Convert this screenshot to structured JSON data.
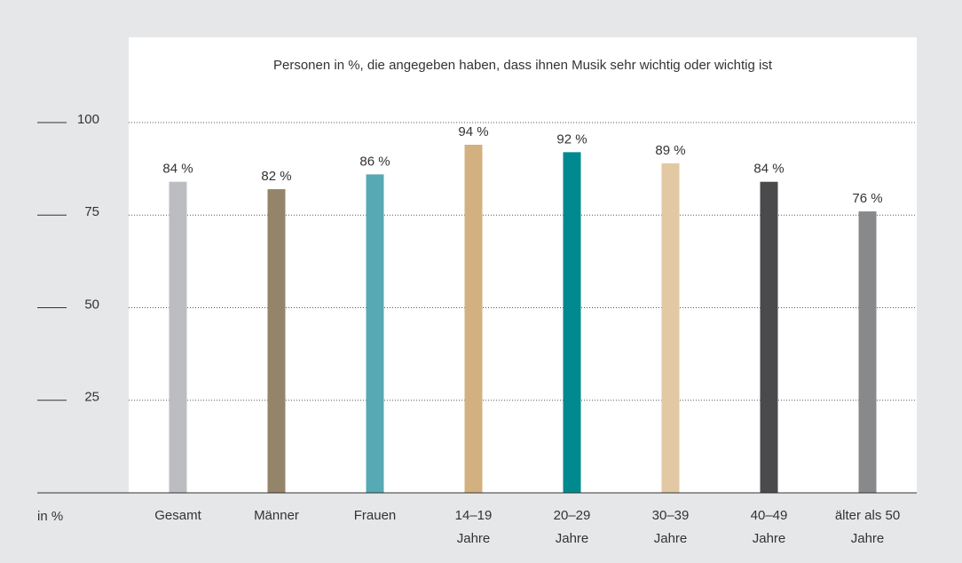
{
  "chart_data": {
    "type": "bar",
    "title": "Personen in %, die angegeben haben, dass ihnen Musik sehr wichtig oder wichtig ist",
    "y_label": "in %",
    "categories": [
      "Gesamt",
      "Männer",
      "Frauen",
      "14–19\nJahre",
      "20–29\nJahre",
      "30–39\nJahre",
      "40–49\nJahre",
      "älter als 50\nJahre"
    ],
    "values": [
      84,
      82,
      86,
      94,
      92,
      89,
      84,
      76
    ],
    "value_labels": [
      "84 %",
      "82 %",
      "86 %",
      "94 %",
      "92 %",
      "89 %",
      "84 %",
      "76 %"
    ],
    "colors": [
      "#bcbdc0",
      "#948469",
      "#57a9b4",
      "#d3b07f",
      "#00898f",
      "#e2c8a3",
      "#4a4a4c",
      "#88898b"
    ],
    "ylim": [
      0,
      100
    ],
    "yticks": [
      25,
      50,
      75,
      100
    ],
    "grid": true
  }
}
